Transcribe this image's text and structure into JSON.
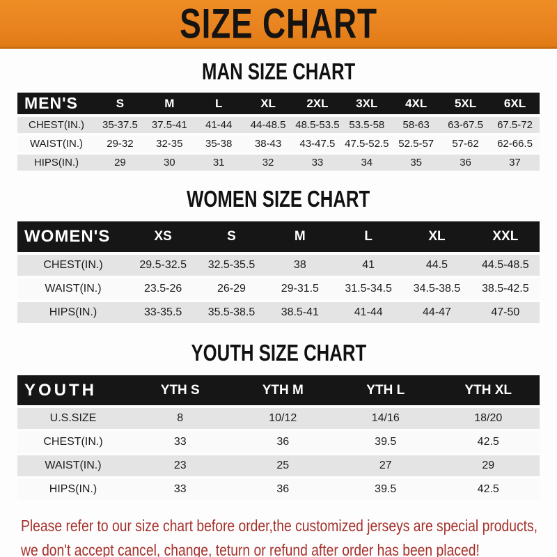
{
  "banner": {
    "title": "SIZE CHART"
  },
  "colors": {
    "banner_orange": "#E8831F",
    "banner_border": "#C96C10",
    "header_bar_black": "#161616",
    "stripe_gray": "#E4E4E4",
    "note_red": "#A6312B"
  },
  "sections": [
    {
      "heading": "MAN SIZE CHART",
      "table": {
        "label": "MEN'S",
        "columns": [
          "S",
          "M",
          "L",
          "XL",
          "2XL",
          "3XL",
          "4XL",
          "5XL",
          "6XL"
        ],
        "rows": [
          {
            "label": "CHEST(IN.)",
            "values": [
              "35-37.5",
              "37.5-41",
              "41-44",
              "44-48.5",
              "48.5-53.5",
              "53.5-58",
              "58-63",
              "63-67.5",
              "67.5-72"
            ]
          },
          {
            "label": "WAIST(IN.)",
            "values": [
              "29-32",
              "32-35",
              "35-38",
              "38-43",
              "43-47.5",
              "47.5-52.5",
              "52.5-57",
              "57-62",
              "62-66.5"
            ]
          },
          {
            "label": "HIPS(IN.)",
            "values": [
              "29",
              "30",
              "31",
              "32",
              "33",
              "34",
              "35",
              "36",
              "37"
            ]
          }
        ]
      }
    },
    {
      "heading": "WOMEN SIZE CHART",
      "table": {
        "label": "WOMEN'S",
        "columns": [
          "XS",
          "S",
          "M",
          "L",
          "XL",
          "XXL"
        ],
        "rows": [
          {
            "label": "CHEST(IN.)",
            "values": [
              "29.5-32.5",
              "32.5-35.5",
              "38",
              "41",
              "44.5",
              "44.5-48.5"
            ]
          },
          {
            "label": "WAIST(IN.)",
            "values": [
              "23.5-26",
              "26-29",
              "29-31.5",
              "31.5-34.5",
              "34.5-38.5",
              "38.5-42.5"
            ]
          },
          {
            "label": "HIPS(IN.)",
            "values": [
              "33-35.5",
              "35.5-38.5",
              "38.5-41",
              "41-44",
              "44-47",
              "47-50"
            ]
          }
        ]
      }
    },
    {
      "heading": "YOUTH SIZE CHART",
      "table": {
        "label": "YOUTH",
        "columns": [
          "YTH S",
          "YTH M",
          "YTH L",
          "YTH XL"
        ],
        "rows": [
          {
            "label": "U.S.SIZE",
            "values": [
              "8",
              "10/12",
              "14/16",
              "18/20"
            ]
          },
          {
            "label": "CHEST(IN.)",
            "values": [
              "33",
              "36",
              "39.5",
              "42.5"
            ]
          },
          {
            "label": "WAIST(IN.)",
            "values": [
              "23",
              "25",
              "27",
              "29"
            ]
          },
          {
            "label": "HIPS(IN.)",
            "values": [
              "33",
              "36",
              "39.5",
              "42.5"
            ]
          }
        ]
      }
    }
  ],
  "footer": {
    "line1": "Please refer to our size chart before order,the customized jerseys are special products,",
    "line2": "we don't accept cancel, change, teturn or refund after order has been placed!"
  }
}
